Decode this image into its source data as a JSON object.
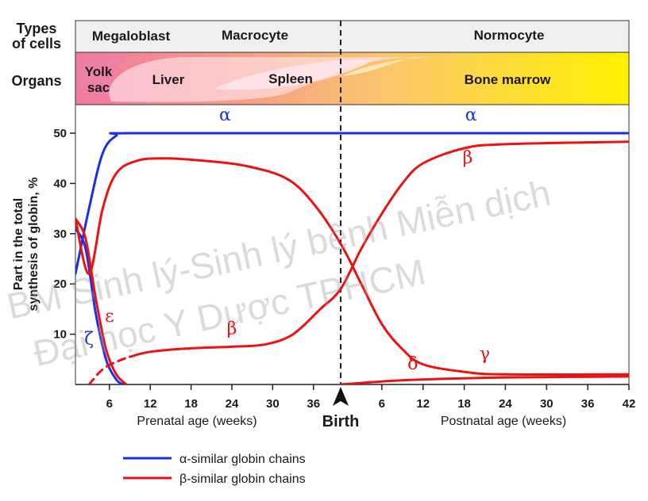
{
  "header": {
    "types_label_line1": "Types",
    "types_label_line2": "of cells",
    "organs_label": "Organs",
    "cell_types": [
      "Megaloblast",
      "Macrocyte",
      "Normocyte"
    ],
    "organs": {
      "yolk_line1": "Yolk",
      "yolk_line2": "sac",
      "liver": "Liver",
      "spleen": "Spleen",
      "bone_marrow": "Bone marrow"
    }
  },
  "watermark": {
    "line1": "BM Sinh lý-Sinh lý bệnh Miễn dịch",
    "line2": "Đại học Y Dược TPHCM"
  },
  "colors": {
    "alpha_blue": "#1a2fe8",
    "beta_red": "#ee1111",
    "yolk_pink": "#ee7fa6",
    "marrow_yellow": "#fff200"
  },
  "legend": {
    "alpha_text": "α-similar globin chains",
    "beta_text": "β-similar globin chains"
  },
  "chart_data": {
    "type": "line",
    "ylabel_line1": "Part in the total",
    "ylabel_line2": "synthesis of globin, %",
    "ylim": [
      0,
      50
    ],
    "yticks": [
      "10",
      "20",
      "30",
      "40",
      "50"
    ],
    "birth_label": "Birth",
    "prenatal": {
      "xlabel": "Prenatal age (weeks)",
      "xlim": [
        1,
        40
      ],
      "xticks": [
        "6",
        "12",
        "18",
        "24",
        "30",
        "36"
      ]
    },
    "postnatal": {
      "xlabel": "Postnatal age (weeks)",
      "xlim": [
        0,
        42
      ],
      "xticks": [
        "6",
        "12",
        "18",
        "24",
        "30",
        "36",
        "42"
      ]
    },
    "series": [
      {
        "label": "α",
        "group": "alpha",
        "dashed": false,
        "label_pos": {
          "period": "prenatal",
          "x": 23,
          "y": 52.5
        },
        "points": [
          {
            "p": "prenatal",
            "x": 1,
            "y": 22
          },
          {
            "p": "prenatal",
            "x": 3,
            "y": 35
          },
          {
            "p": "prenatal",
            "x": 5,
            "y": 46
          },
          {
            "p": "prenatal",
            "x": 7,
            "y": 49.5
          },
          {
            "p": "prenatal",
            "x": 9,
            "y": 50
          },
          {
            "p": "prenatal",
            "x": 40,
            "y": 50
          },
          {
            "p": "postnatal",
            "x": 42,
            "y": 50
          }
        ]
      },
      {
        "label": "α",
        "group": "alpha",
        "dashed": false,
        "label_pos": {
          "period": "postnatal",
          "x": 19,
          "y": 52.5
        },
        "points": []
      },
      {
        "label": "ζ",
        "group": "alpha",
        "dashed": false,
        "label_pos": {
          "period": "prenatal",
          "x": 3,
          "y": 8
        },
        "points": [
          {
            "p": "prenatal",
            "x": 1,
            "y": 31
          },
          {
            "p": "prenatal",
            "x": 2.5,
            "y": 27
          },
          {
            "p": "prenatal",
            "x": 4,
            "y": 14
          },
          {
            "p": "prenatal",
            "x": 5.5,
            "y": 5
          },
          {
            "p": "prenatal",
            "x": 7,
            "y": 1
          },
          {
            "p": "prenatal",
            "x": 8,
            "y": 0
          }
        ]
      },
      {
        "label": "ε",
        "group": "beta",
        "dashed": false,
        "label_pos": {
          "period": "prenatal",
          "x": 6,
          "y": 12.5
        },
        "points": [
          {
            "p": "prenatal",
            "x": 1,
            "y": 33
          },
          {
            "p": "prenatal",
            "x": 2.5,
            "y": 29
          },
          {
            "p": "prenatal",
            "x": 4,
            "y": 17
          },
          {
            "p": "prenatal",
            "x": 5.5,
            "y": 7
          },
          {
            "p": "prenatal",
            "x": 7,
            "y": 2
          },
          {
            "p": "prenatal",
            "x": 8.5,
            "y": 0
          }
        ]
      },
      {
        "label": "γ",
        "group": "beta",
        "dashed": false,
        "label_pos": {
          "period": "postnatal",
          "x": 21,
          "y": 5
        },
        "points": [
          {
            "p": "prenatal",
            "x": 1,
            "y": 33
          },
          {
            "p": "prenatal",
            "x": 3,
            "y": 22
          },
          {
            "p": "prenatal",
            "x": 5,
            "y": 35
          },
          {
            "p": "prenatal",
            "x": 7,
            "y": 42
          },
          {
            "p": "prenatal",
            "x": 10,
            "y": 44.5
          },
          {
            "p": "prenatal",
            "x": 14,
            "y": 45
          },
          {
            "p": "prenatal",
            "x": 20,
            "y": 44.5
          },
          {
            "p": "prenatal",
            "x": 26,
            "y": 43.5
          },
          {
            "p": "prenatal",
            "x": 32,
            "y": 41
          },
          {
            "p": "prenatal",
            "x": 36,
            "y": 36
          },
          {
            "p": "prenatal",
            "x": 40,
            "y": 28
          },
          {
            "p": "postnatal",
            "x": 3,
            "y": 20
          },
          {
            "p": "postnatal",
            "x": 6,
            "y": 12
          },
          {
            "p": "postnatal",
            "x": 9,
            "y": 7
          },
          {
            "p": "postnatal",
            "x": 12,
            "y": 4
          },
          {
            "p": "postnatal",
            "x": 18,
            "y": 2.5
          },
          {
            "p": "postnatal",
            "x": 24,
            "y": 2
          },
          {
            "p": "postnatal",
            "x": 42,
            "y": 2
          }
        ]
      },
      {
        "label": "β",
        "group": "beta",
        "dashed": false,
        "label_pos": {
          "period": "prenatal",
          "x": 24,
          "y": 10
        },
        "points": [
          {
            "p": "prenatal",
            "x": 9,
            "y": 5.5
          },
          {
            "p": "prenatal",
            "x": 12,
            "y": 6.5
          },
          {
            "p": "prenatal",
            "x": 18,
            "y": 7.2
          },
          {
            "p": "prenatal",
            "x": 24,
            "y": 7.5
          },
          {
            "p": "prenatal",
            "x": 29,
            "y": 8
          },
          {
            "p": "prenatal",
            "x": 33,
            "y": 10
          },
          {
            "p": "prenatal",
            "x": 37,
            "y": 15
          },
          {
            "p": "prenatal",
            "x": 40,
            "y": 19
          },
          {
            "p": "postnatal",
            "x": 3,
            "y": 27
          },
          {
            "p": "postnatal",
            "x": 6,
            "y": 34
          },
          {
            "p": "postnatal",
            "x": 9,
            "y": 40
          },
          {
            "p": "postnatal",
            "x": 12,
            "y": 44
          },
          {
            "p": "postnatal",
            "x": 18,
            "y": 47
          },
          {
            "p": "postnatal",
            "x": 24,
            "y": 47.8
          },
          {
            "p": "postnatal",
            "x": 42,
            "y": 48.3
          }
        ]
      },
      {
        "label": "β",
        "group": "beta",
        "dashed": false,
        "label_pos": {
          "period": "postnatal",
          "x": 18.5,
          "y": 44
        },
        "points": []
      },
      {
        "label": "",
        "group": "beta",
        "dashed": true,
        "label_pos": null,
        "points": [
          {
            "p": "prenatal",
            "x": 3,
            "y": 0
          },
          {
            "p": "prenatal",
            "x": 5,
            "y": 3
          },
          {
            "p": "prenatal",
            "x": 7,
            "y": 4.5
          },
          {
            "p": "prenatal",
            "x": 9,
            "y": 5.5
          }
        ]
      },
      {
        "label": "δ",
        "group": "beta",
        "dashed": false,
        "label_pos": {
          "period": "postnatal",
          "x": 10.5,
          "y": 3
        },
        "points": [
          {
            "p": "postnatal",
            "x": 0,
            "y": 0
          },
          {
            "p": "postnatal",
            "x": 6,
            "y": 0.6
          },
          {
            "p": "postnatal",
            "x": 12,
            "y": 1
          },
          {
            "p": "postnatal",
            "x": 24,
            "y": 1.4
          },
          {
            "p": "postnatal",
            "x": 42,
            "y": 1.6
          }
        ]
      }
    ]
  }
}
